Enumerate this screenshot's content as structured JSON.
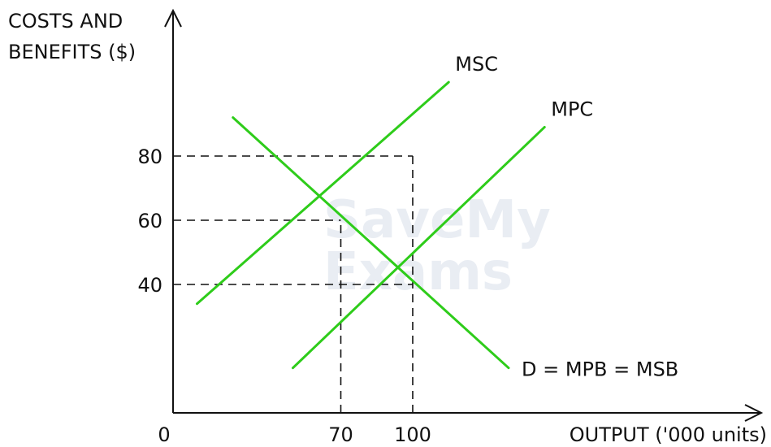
{
  "chart_data": {
    "type": "line",
    "ylabel_line1": "COSTS AND",
    "ylabel_line2": "BENEFITS ($)",
    "xlabel": "OUTPUT ('000 units)",
    "origin_label": "0",
    "x_ticks": [
      70,
      100
    ],
    "y_ticks": [
      40,
      60,
      80
    ],
    "series": [
      {
        "name": "MSC",
        "x": [
          10,
          115
        ],
        "y": [
          34,
          103
        ],
        "color": "#2ecc1a"
      },
      {
        "name": "MPC",
        "x": [
          50,
          155
        ],
        "y": [
          14,
          89
        ],
        "color": "#2ecc1a"
      },
      {
        "name": "D = MPB = MSB",
        "x": [
          25,
          140
        ],
        "y": [
          92,
          14
        ],
        "color": "#2ecc1a"
      }
    ],
    "guides": [
      {
        "x": 70,
        "y": 60
      },
      {
        "x": 100,
        "y": 40
      },
      {
        "x": 100,
        "y": 80
      }
    ],
    "watermark": [
      "SaveMy",
      "Exams"
    ]
  }
}
